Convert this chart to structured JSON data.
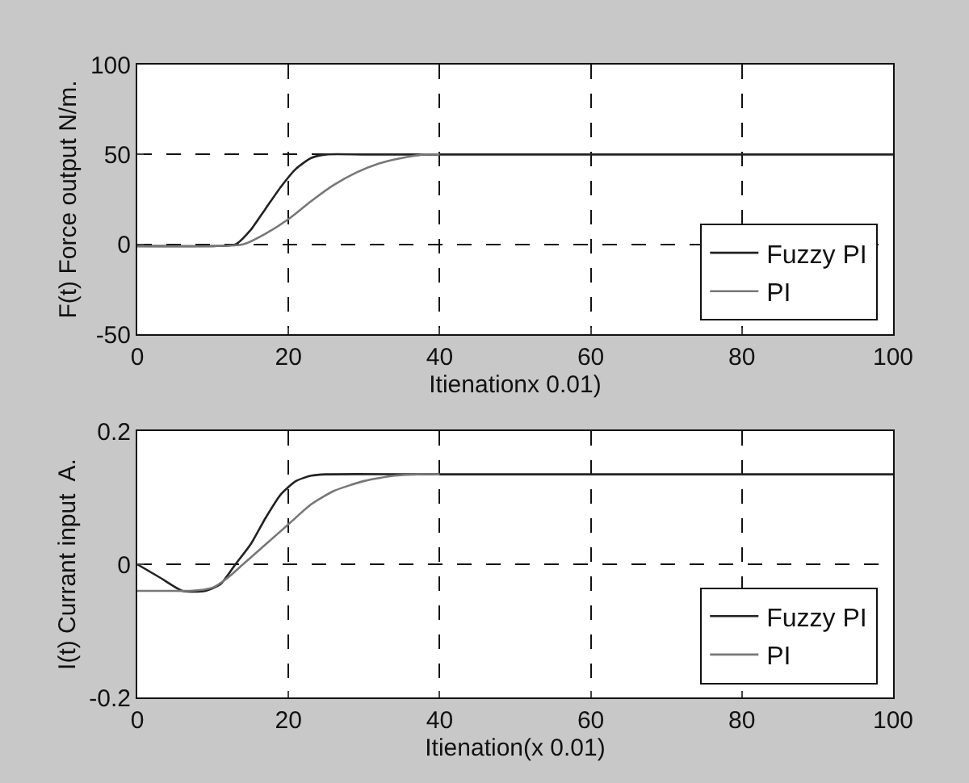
{
  "chart_data": [
    {
      "type": "line",
      "xlabel": "Itienationx 0.01)",
      "ylabel": "F(t) Force output N/m.",
      "xlim": [
        0,
        100
      ],
      "xticks": [
        0,
        20,
        40,
        60,
        80,
        100
      ],
      "ylim": [
        -50,
        100
      ],
      "yticks": [
        -50,
        0,
        50,
        100
      ],
      "grid": true,
      "legend": "bottom right",
      "line_style": "solid",
      "series": [
        {
          "name": "Fuzzy PI",
          "color": "#222222",
          "x": [
            0,
            5,
            10,
            13,
            15,
            17,
            19,
            21,
            23,
            25,
            30,
            40,
            100
          ],
          "values": [
            -1,
            -1,
            -1,
            0,
            8,
            20,
            32,
            42,
            48,
            50,
            50,
            50,
            50
          ]
        },
        {
          "name": "PI",
          "color": "#777777",
          "x": [
            0,
            10,
            14,
            17,
            20,
            23,
            26,
            29,
            32,
            35,
            38,
            40
          ],
          "values": [
            -1,
            -1,
            0,
            6,
            14,
            24,
            33,
            40,
            45,
            48,
            50,
            50
          ]
        }
      ]
    },
    {
      "type": "line",
      "xlabel": "Itienation(x 0.01)",
      "ylabel": "I(t) Currant input  A.",
      "xlim": [
        0,
        100
      ],
      "xticks": [
        0,
        20,
        40,
        60,
        80,
        100
      ],
      "ylim": [
        -0.2,
        0.2
      ],
      "yticks": [
        -0.2,
        0,
        0.2
      ],
      "grid": true,
      "legend": "bottom right",
      "line_style": "solid",
      "series": [
        {
          "name": "Fuzzy PI",
          "color": "#222222",
          "x": [
            0,
            3,
            6,
            9,
            11,
            13,
            15,
            17,
            19,
            21,
            23,
            25,
            40,
            100
          ],
          "values": [
            0,
            -0.02,
            -0.04,
            -0.04,
            -0.03,
            0,
            0.03,
            0.07,
            0.105,
            0.125,
            0.133,
            0.135,
            0.135,
            0.135
          ]
        },
        {
          "name": "PI",
          "color": "#777777",
          "x": [
            0,
            4,
            7,
            10,
            12,
            14,
            17,
            20,
            23,
            26,
            30,
            34,
            37,
            40
          ],
          "values": [
            -0.04,
            -0.04,
            -0.04,
            -0.035,
            -0.02,
            0,
            0.03,
            0.06,
            0.09,
            0.11,
            0.125,
            0.133,
            0.135,
            0.135
          ]
        }
      ]
    }
  ]
}
